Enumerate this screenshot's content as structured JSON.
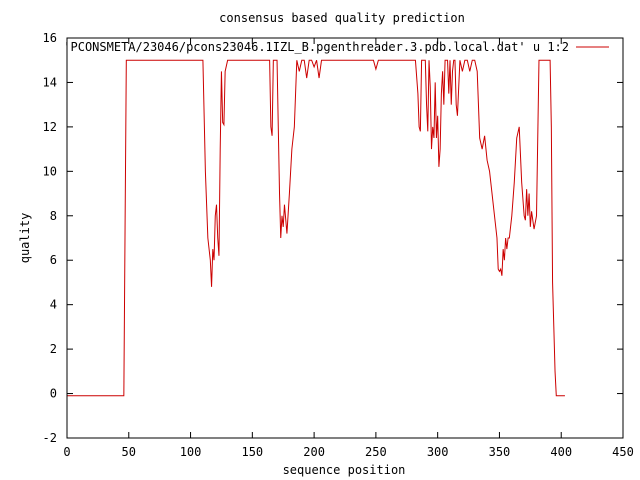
{
  "chart_data": {
    "type": "line",
    "title": "consensus based quality prediction",
    "xlabel": "sequence position",
    "ylabel": "quality",
    "xlim": [
      0,
      450
    ],
    "ylim": [
      -2,
      16
    ],
    "xticks": [
      0,
      50,
      100,
      150,
      200,
      250,
      300,
      350,
      400,
      450
    ],
    "yticks": [
      -2,
      0,
      2,
      4,
      6,
      8,
      10,
      12,
      14,
      16
    ],
    "grid": false,
    "legend": "top-right",
    "series": [
      {
        "name": "'PCONSMETA/23046/pcons23046.1IZL_B.pgenthreader.3.pdb.local.dat' u 1:2",
        "color": "#cc0000",
        "x": [
          0,
          46,
          47,
          48,
          110,
          112,
          114,
          116,
          117,
          118,
          119,
          120,
          121,
          122,
          123,
          124,
          125,
          126,
          127,
          128,
          130,
          132,
          164,
          165,
          166,
          167,
          168,
          170,
          171,
          172,
          173,
          174,
          175,
          176,
          178,
          180,
          182,
          184,
          186,
          188,
          190,
          192,
          194,
          196,
          198,
          200,
          202,
          204,
          206,
          208,
          210,
          212,
          214,
          216,
          248,
          250,
          252,
          254,
          282,
          284,
          285,
          286,
          287,
          288,
          290,
          291,
          292,
          293,
          294,
          295,
          296,
          297,
          298,
          299,
          300,
          301,
          302,
          303,
          304,
          305,
          306,
          308,
          309,
          310,
          311,
          312,
          313,
          314,
          315,
          316,
          318,
          320,
          322,
          324,
          326,
          328,
          330,
          332,
          334,
          336,
          338,
          340,
          342,
          344,
          346,
          348,
          349,
          350,
          351,
          352,
          353,
          354,
          355,
          356,
          357,
          358,
          360,
          362,
          364,
          366,
          368,
          370,
          371,
          372,
          373,
          374,
          375,
          376,
          378,
          380,
          382,
          390,
          391,
          392,
          393,
          394,
          395,
          396,
          403
        ],
        "values": [
          -0.1,
          -0.1,
          7.5,
          15,
          15,
          10,
          7,
          6,
          4.8,
          6.5,
          6,
          8,
          8.5,
          7,
          6.2,
          11,
          14.5,
          12.2,
          12.1,
          14.5,
          15,
          15,
          15,
          12,
          11.6,
          15,
          15,
          15,
          12,
          9,
          7,
          8,
          7.5,
          8.5,
          7.2,
          9,
          11,
          12,
          15,
          14.5,
          15,
          15,
          14.2,
          15,
          15,
          14.7,
          15,
          14.2,
          15,
          15,
          15,
          15,
          15,
          15,
          15,
          14.6,
          15,
          15,
          15,
          13.5,
          12,
          11.8,
          15,
          15,
          15,
          13,
          11.8,
          15,
          13.8,
          11,
          12,
          11.5,
          14,
          11.5,
          12.5,
          10.2,
          11,
          13.5,
          14.5,
          13,
          15,
          15,
          13.5,
          15,
          13,
          14.5,
          15,
          15,
          13,
          12.5,
          15,
          14.5,
          15,
          15,
          14.5,
          15,
          15,
          14.5,
          11.5,
          11,
          11.6,
          10.5,
          10,
          9,
          8,
          7,
          5.6,
          5.5,
          5.6,
          5.3,
          6.5,
          6,
          7,
          6.5,
          7,
          7,
          8,
          9.5,
          11.5,
          12,
          9.5,
          8,
          7.8,
          9.2,
          8,
          9,
          7.5,
          8.2,
          7.4,
          8,
          15,
          15,
          15,
          12,
          5,
          3,
          1,
          -0.1,
          -0.1
        ]
      }
    ]
  }
}
